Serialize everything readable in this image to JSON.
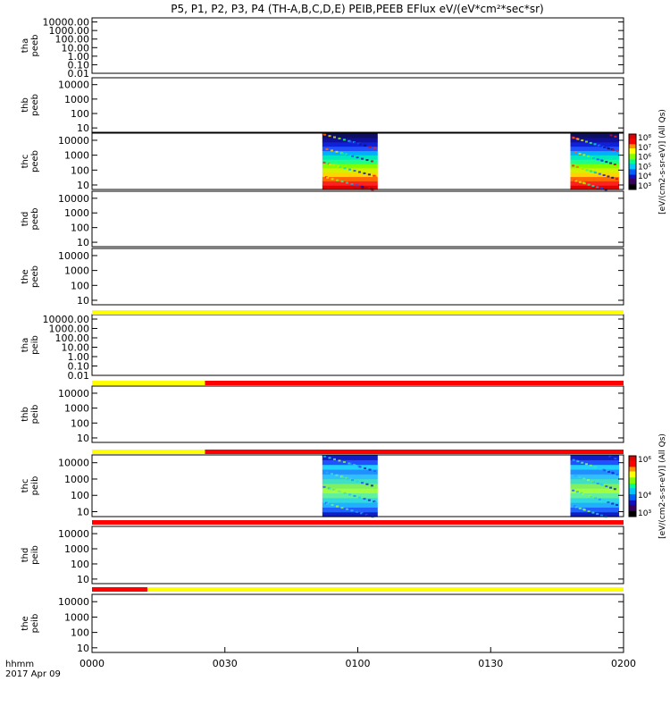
{
  "title": "P5, P1, P2, P3, P4 (TH-A,B,C,D,E) PEIB,PEEB EFlux eV/(eV*cm²*sec*sr)",
  "chart_data": {
    "type": "heatmap",
    "title": "P5, P1, P2, P3, P4 (TH-A,B,C,D,E) PEIB,PEEB EFlux eV/(eV*cm²*sec*sr)",
    "x_axis": {
      "label_line1": "hhmm",
      "label_line2": "2017 Apr 09",
      "ticks": [
        "0000",
        "0030",
        "0100",
        "0130",
        "0200"
      ],
      "tick_minutes": [
        0,
        30,
        60,
        90,
        120
      ],
      "range_minutes": [
        0,
        120
      ]
    },
    "panels": [
      {
        "probe": "tha",
        "product": "peeb",
        "yticks": [
          "10000.00",
          "1000.00",
          "100.00",
          "10.00",
          "1.00",
          "0.10",
          "0.01"
        ],
        "ytick_values": [
          10000,
          1000,
          100,
          10,
          1,
          0.1,
          0.01
        ],
        "ylim": [
          0.01,
          30000
        ],
        "log_y": true,
        "data_blocks": []
      },
      {
        "probe": "thb",
        "product": "peeb",
        "yticks": [
          "10000",
          "1000",
          "100",
          "10"
        ],
        "ytick_values": [
          10000,
          1000,
          100,
          10
        ],
        "ylim": [
          5,
          30000
        ],
        "log_y": true,
        "data_blocks": []
      },
      {
        "probe": "thc",
        "product": "peeb",
        "yticks": [
          "10000",
          "1000",
          "100",
          "10"
        ],
        "ytick_values": [
          10000,
          1000,
          100,
          10
        ],
        "ylim": [
          5,
          30000
        ],
        "log_y": true,
        "colorbar": 0,
        "data_blocks": [
          {
            "start_min": 52,
            "end_min": 64.5
          },
          {
            "start_min": 108,
            "end_min": 119
          }
        ],
        "colors_by_energy": [
          "#e00000",
          "#ff2020",
          "#ff6a00",
          "#ffd500",
          "#d8f000",
          "#80ff00",
          "#20ff80",
          "#00e8c0",
          "#00b0ff",
          "#2050ff",
          "#1020d8",
          "#1010a0",
          "#101060"
        ]
      },
      {
        "probe": "thd",
        "product": "peeb",
        "yticks": [
          "10000",
          "1000",
          "100",
          "10"
        ],
        "ytick_values": [
          10000,
          1000,
          100,
          10
        ],
        "ylim": [
          5,
          30000
        ],
        "log_y": true,
        "data_blocks": []
      },
      {
        "probe": "the",
        "product": "peeb",
        "yticks": [
          "10000",
          "1000",
          "100",
          "10"
        ],
        "ytick_values": [
          10000,
          1000,
          100,
          10
        ],
        "ylim": [
          5,
          30000
        ],
        "log_y": true,
        "data_blocks": []
      },
      {
        "probe": "tha",
        "product": "peib",
        "yticks": [
          "10000.00",
          "1000.00",
          "100.00",
          "10.00",
          "1.00",
          "0.10",
          "0.01"
        ],
        "ytick_values": [
          10000,
          1000,
          100,
          10,
          1,
          0.1,
          0.01
        ],
        "ylim": [
          0.01,
          30000
        ],
        "log_y": true,
        "data_blocks": []
      },
      {
        "probe": "thb",
        "product": "peib",
        "yticks": [
          "10000",
          "1000",
          "100",
          "10"
        ],
        "ytick_values": [
          10000,
          1000,
          100,
          10
        ],
        "ylim": [
          5,
          30000
        ],
        "log_y": true,
        "data_blocks": []
      },
      {
        "probe": "thc",
        "product": "peib",
        "yticks": [
          "10000",
          "1000",
          "100",
          "10"
        ],
        "ytick_values": [
          10000,
          1000,
          100,
          10
        ],
        "ylim": [
          5,
          30000
        ],
        "log_y": true,
        "colorbar": 1,
        "data_blocks": [
          {
            "start_min": 52,
            "end_min": 64.5
          },
          {
            "start_min": 108,
            "end_min": 119
          }
        ],
        "colors_by_energy": [
          "#1020c0",
          "#2060ff",
          "#20b0ff",
          "#30d8e0",
          "#60f0a0",
          "#a0ff40",
          "#80f060",
          "#40e0c0",
          "#30c0ff",
          "#2090ff",
          "#20d0ff",
          "#2050ff",
          "#1020c0"
        ]
      },
      {
        "probe": "thd",
        "product": "peib",
        "yticks": [
          "10000",
          "1000",
          "100",
          "10"
        ],
        "ytick_values": [
          10000,
          1000,
          100,
          10
        ],
        "ylim": [
          5,
          30000
        ],
        "log_y": true,
        "data_blocks": []
      },
      {
        "probe": "the",
        "product": "peib",
        "yticks": [
          "10000",
          "1000",
          "100",
          "10"
        ],
        "ytick_values": [
          10000,
          1000,
          100,
          10
        ],
        "ylim": [
          5,
          30000
        ],
        "log_y": true,
        "data_blocks": []
      }
    ],
    "mode_bars": [
      {
        "after_panel": 4,
        "segments": [
          {
            "start_min": 0,
            "end_min": 120,
            "color": "#ffff00"
          }
        ]
      },
      {
        "after_panel": 5,
        "segments": [
          {
            "start_min": 0,
            "end_min": 25.5,
            "color": "#ffff00"
          },
          {
            "start_min": 25.5,
            "end_min": 120,
            "color": "#ff0000"
          }
        ]
      },
      {
        "after_panel": 6,
        "segments": [
          {
            "start_min": 0,
            "end_min": 25.5,
            "color": "#ffff00"
          },
          {
            "start_min": 25.5,
            "end_min": 120,
            "color": "#ff0000"
          }
        ]
      },
      {
        "after_panel": 7,
        "segments": [
          {
            "start_min": 0,
            "end_min": 120,
            "color": "#ff0000"
          }
        ]
      },
      {
        "after_panel": 8,
        "segments": [
          {
            "start_min": 0,
            "end_min": 12.5,
            "color": "#ff0000"
          },
          {
            "start_min": 12.5,
            "end_min": 120,
            "color": "#ffff00"
          }
        ]
      }
    ],
    "colorbars": [
      {
        "label": "[eV/(cm2-s-sr-eV)] (All Qs)",
        "ticks": [
          "10⁸",
          "10⁷",
          "10⁶",
          "10⁵",
          "10⁴",
          "10³"
        ],
        "tick_exponents": [
          8,
          7,
          6,
          5,
          4,
          3
        ]
      },
      {
        "label": "[eV/(cm2-s-sr-eV)] (All Qs)",
        "ticks": [
          "10⁶",
          "10⁴",
          "10³"
        ],
        "tick_exponents": [
          6,
          4,
          3
        ]
      }
    ],
    "colormap": [
      "#000000",
      "#3a0060",
      "#1010c0",
      "#0060ff",
      "#00c8ff",
      "#00ff90",
      "#80ff00",
      "#ffff00",
      "#ff9000",
      "#ff0000",
      "#e00000"
    ]
  }
}
